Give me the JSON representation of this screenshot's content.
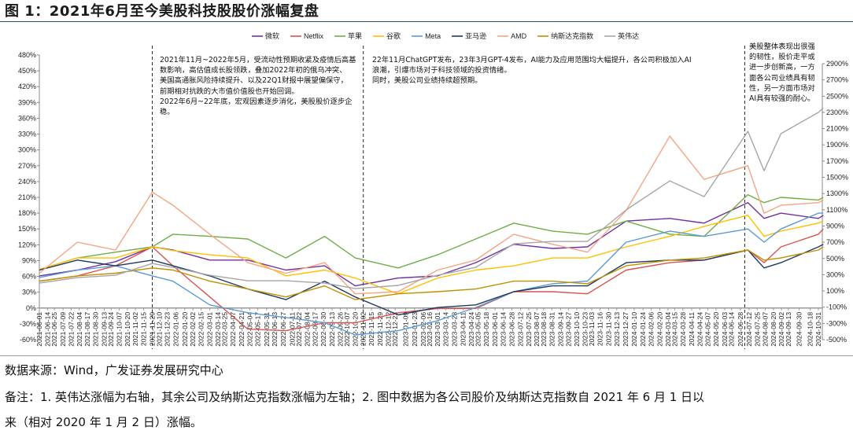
{
  "title": "图 1：2021年6月至今美股科技股股价涨幅复盘",
  "source": "数据来源：Wind，广发证券发展研究中心",
  "notes": [
    "备注：1. 英伟达涨幅为右轴，其余公司及纳斯达克指数涨幅为左轴；2. 图中数据为各公司股价及纳斯达克指数自 2021 年 6 月 1 日以",
    "来（相对 2020 年 1 月 2 日）涨幅。"
  ],
  "annotations": [
    {
      "date": "2021-11-29",
      "lines": [
        "2021年11月~2022年5月，受流动性预期收紧及疫情后高基",
        "数影响，高估值成长股领跌，叠加2022年初的俄乌冲突、",
        "美国高通胀风险持续提升、以及22Q1财报中展望偏保守，",
        "前期相对抗跌的大市值价值股也开始回调。",
        "2022年6月~22年底，宏观因素逐步消化，美股股价逐步企",
        "稳。"
      ]
    },
    {
      "date": "2022-11-02",
      "lines": [
        "22年11月ChatGPT发布，23年3月GPT-4发布，AI能力及应用范围均大幅提升，各公司积极加入AI",
        "浪潮，引爆市场对于科技领域的投资情绪。",
        "同时，美股公司业绩持续超预期。"
      ]
    },
    {
      "date": "2024-07-05",
      "lines": [
        "美股整体表现出很强",
        "的韧性，股价走平或",
        "进一步创新高，一方",
        "面各公司业绩具有韧",
        "性，另一方面市场对",
        "AI具有较强的耐心。"
      ]
    }
  ],
  "chart_data": {
    "type": "line",
    "title": "",
    "xlabel": "",
    "ylabel": "",
    "y_left": {
      "range": [
        -60,
        480
      ],
      "step": 30,
      "unit": "%"
    },
    "y_right": {
      "range": [
        -500,
        2900
      ],
      "step": 200,
      "unit": "%"
    },
    "grid": false,
    "legend_position": "top",
    "x_tick_labels": [
      "2021-06-01",
      "2021-06-14",
      "2021-06-25",
      "2021-07-09",
      "2021-07-22",
      "2021-08-04",
      "2021-08-17",
      "2021-08-30",
      "2021-09-13",
      "2021-09-24",
      "2021-10-07",
      "2021-10-20",
      "2021-11-02",
      "2021-11-15",
      "2021-11-29",
      "2021-12-10",
      "2021-12-23",
      "2022-01-06",
      "2022-01-20",
      "2022-02-02",
      "2022-02-15",
      "2022-03-01",
      "2022-03-14",
      "2022-03-25",
      "2022-04-07",
      "2022-04-21",
      "2022-05-04",
      "2022-05-17",
      "2022-05-31",
      "2022-06-13",
      "2022-06-27",
      "2022-07-11",
      "2022-07-22",
      "2022-08-04",
      "2022-08-17",
      "2022-08-30",
      "2022-09-13",
      "2022-09-26",
      "2022-10-07",
      "2022-10-20",
      "2022-11-02",
      "2022-11-15",
      "2022-11-29",
      "2022-12-12",
      "2022-12-23",
      "2023-01-09",
      "2023-01-23",
      "2023-02-06",
      "2023-02-16",
      "2023-03-01",
      "2023-03-14",
      "2023-03-28",
      "2023-04-11",
      "2023-04-24",
      "2023-05-05",
      "2023-05-18",
      "2023-06-01",
      "2023-06-14",
      "2023-06-28",
      "2023-07-12",
      "2023-07-25",
      "2023-08-07",
      "2023-08-18",
      "2023-08-31",
      "2023-09-14",
      "2023-09-27",
      "2023-10-10",
      "2023-10-23",
      "2023-11-03",
      "2023-11-16",
      "2023-11-30",
      "2023-12-13",
      "2023-12-27",
      "2024-01-10",
      "2024-01-24",
      "2024-02-06",
      "2024-02-20",
      "2024-03-04",
      "2024-03-15",
      "2024-03-28",
      "2024-04-11",
      "2024-04-24",
      "2024-05-07",
      "2024-05-20",
      "2024-06-03",
      "2024-06-14",
      "2024-06-28",
      "2024-07-12",
      "2024-07-25",
      "2024-08-07",
      "2024-08-20",
      "2024-09-02",
      "2024-09-13",
      "2024-09-30",
      "2024-10-18",
      "2024-10-31"
    ],
    "x": [
      "2021-06-01",
      "2021-08-01",
      "2021-10-01",
      "2021-11-29",
      "2022-01-01",
      "2022-03-01",
      "2022-05-01",
      "2022-07-01",
      "2022-09-01",
      "2022-10-20",
      "2022-12-28",
      "2023-03-01",
      "2023-05-01",
      "2023-07-01",
      "2023-09-01",
      "2023-10-27",
      "2023-12-28",
      "2024-03-07",
      "2024-05-01",
      "2024-07-10",
      "2024-08-05",
      "2024-09-01",
      "2024-10-31",
      "2024-11-08"
    ],
    "series": [
      {
        "name": "微软",
        "color": "#7030a0",
        "axis": "left",
        "values": [
          61,
          72,
          88,
          116,
          110,
          91,
          91,
          72,
          80,
          42,
          57,
          61,
          86,
          121,
          113,
          116,
          165,
          170,
          161,
          200,
          170,
          180,
          170,
          176
        ]
      },
      {
        "name": "Netflix",
        "color": "#d9534f",
        "axis": "left",
        "values": [
          51,
          61,
          80,
          116,
          80,
          21,
          -40,
          -43,
          -28,
          -28,
          -9,
          -1,
          -1,
          31,
          31,
          27,
          72,
          86,
          91,
          110,
          86,
          116,
          140,
          150
        ]
      },
      {
        "name": "苹果",
        "color": "#70ad47",
        "axis": "left",
        "values": [
          73,
          95,
          106,
          116,
          140,
          136,
          131,
          95,
          136,
          95,
          76,
          101,
          131,
          161,
          146,
          140,
          165,
          140,
          136,
          215,
          200,
          210,
          205,
          210
        ]
      },
      {
        "name": "谷歌",
        "color": "#ffc000",
        "axis": "left",
        "values": [
          73,
          95,
          95,
          116,
          109,
          101,
          95,
          61,
          72,
          57,
          27,
          57,
          72,
          80,
          95,
          95,
          116,
          136,
          155,
          176,
          136,
          146,
          161,
          165
        ]
      },
      {
        "name": "Meta",
        "color": "#5b9bd5",
        "axis": "left",
        "values": [
          58,
          72,
          80,
          61,
          51,
          6,
          -9,
          -18,
          -28,
          -51,
          -43,
          -24,
          1,
          31,
          46,
          51,
          125,
          146,
          136,
          150,
          125,
          150,
          180,
          180
        ]
      },
      {
        "name": "亚马逊",
        "color": "#1f3864",
        "axis": "left",
        "values": [
          72,
          91,
          80,
          91,
          80,
          61,
          36,
          16,
          51,
          21,
          -13,
          1,
          6,
          31,
          42,
          42,
          86,
          91,
          91,
          110,
          76,
          86,
          116,
          121
        ]
      },
      {
        "name": "AMD",
        "color": "#f4a582",
        "axis": "left",
        "values": [
          66,
          125,
          110,
          220,
          195,
          140,
          86,
          66,
          86,
          27,
          31,
          72,
          91,
          140,
          121,
          106,
          185,
          326,
          244,
          270,
          180,
          195,
          200,
          205
        ]
      },
      {
        "name": "纳斯达克指数",
        "color": "#bf9000",
        "axis": "left",
        "values": [
          51,
          61,
          66,
          76,
          72,
          51,
          36,
          21,
          42,
          16,
          27,
          31,
          36,
          51,
          51,
          46,
          80,
          91,
          95,
          110,
          91,
          95,
          110,
          116
        ]
      },
      {
        "name": "英伟达",
        "color": "#a6a6a6",
        "axis": "right",
        "values": [
          197,
          264,
          293,
          439,
          390,
          293,
          226,
          226,
          197,
          129,
          168,
          293,
          390,
          681,
          710,
          710,
          1098,
          1456,
          1262,
          2067,
          1582,
          2038,
          2299,
          2357
        ]
      }
    ]
  }
}
